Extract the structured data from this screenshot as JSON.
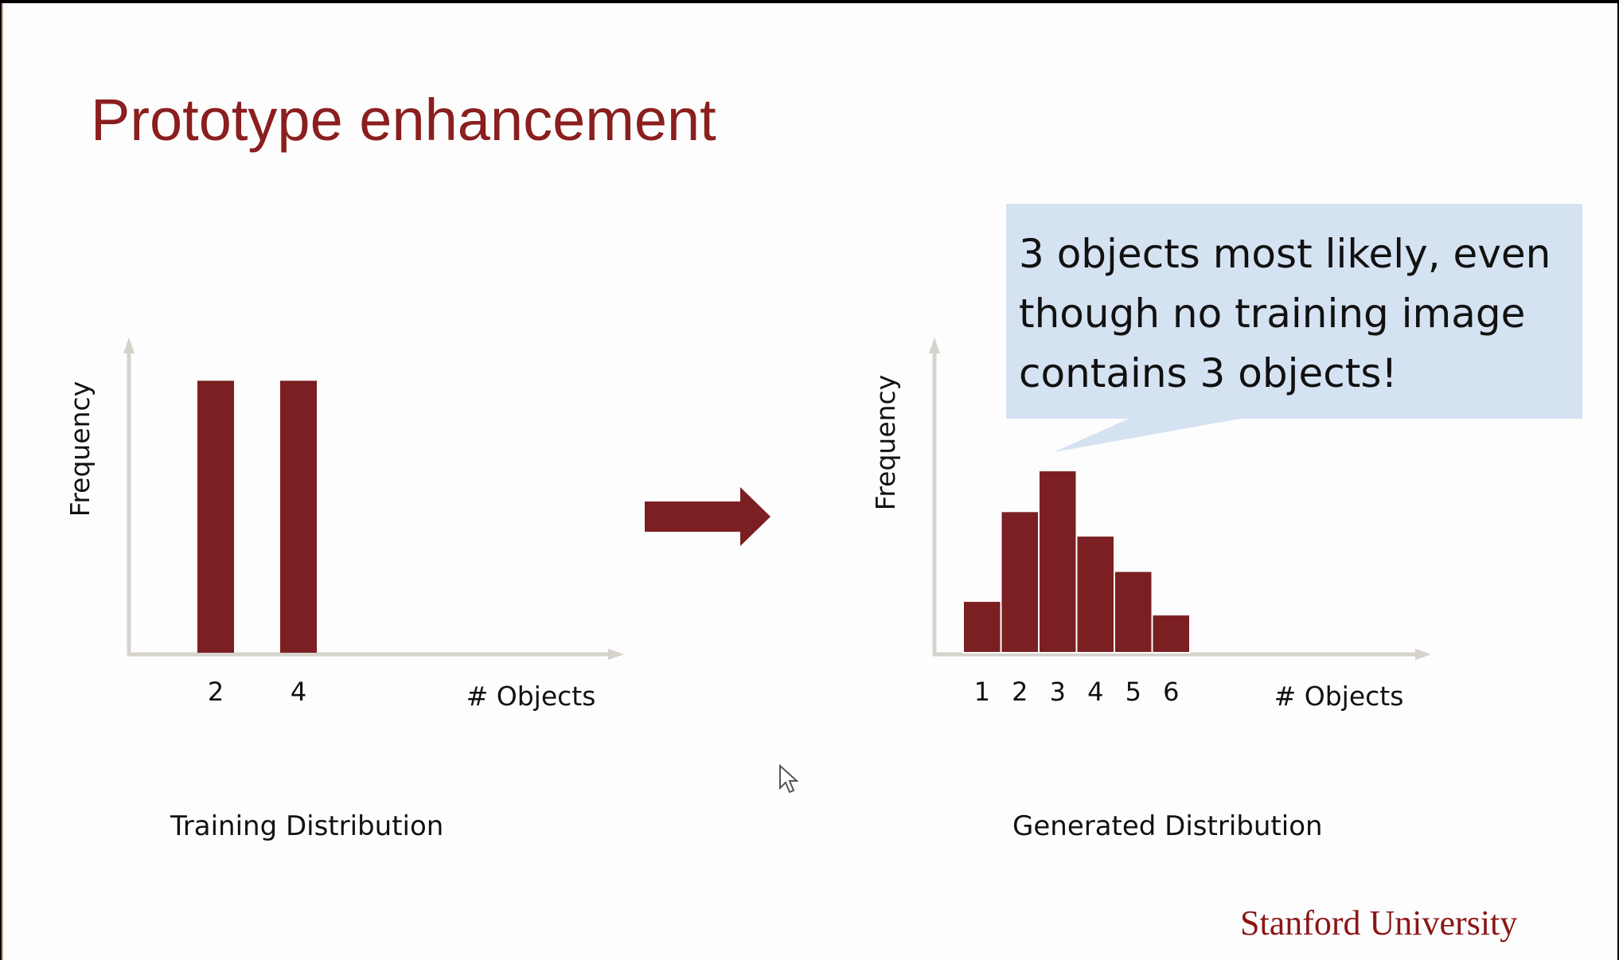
{
  "slide": {
    "title": "Prototype enhancement",
    "brand": "Stanford University",
    "callout": "3 objects most likely, even though no training image contains 3 objects!",
    "colors": {
      "bar": "#7b1f22",
      "title": "#8b1e1e",
      "axis": "#d6d2cc",
      "callout_bg": "#d5e2f2",
      "brand": "#8c1515"
    }
  },
  "chart_data": [
    {
      "type": "bar",
      "title": "Training Distribution",
      "xlabel": "# Objects",
      "ylabel": "Frequency",
      "categories": [
        "2",
        "4"
      ],
      "values": [
        1,
        1
      ],
      "ylim": [
        0,
        1.2
      ],
      "grid": false
    },
    {
      "type": "bar",
      "title": "Generated Distribution",
      "xlabel": "# Objects",
      "ylabel": "Frequency",
      "categories": [
        "1",
        "2",
        "3",
        "4",
        "5",
        "6"
      ],
      "values": [
        0.19,
        0.52,
        0.67,
        0.43,
        0.3,
        0.14
      ],
      "ylim": [
        0,
        1.2
      ],
      "grid": false
    }
  ]
}
